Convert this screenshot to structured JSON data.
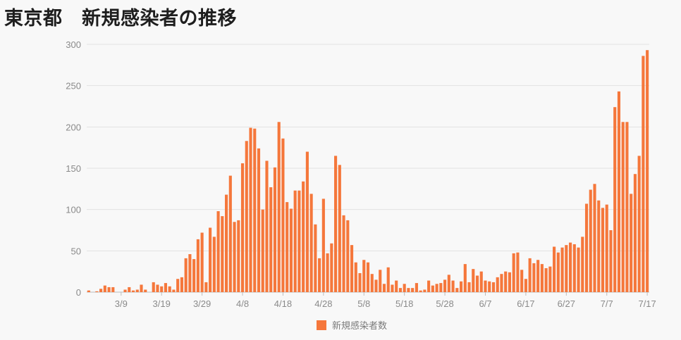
{
  "header": {
    "title": "東京都　新規感染者の推移"
  },
  "chart_data": {
    "type": "bar",
    "color": "#f5773b",
    "ylim": [
      0,
      300
    ],
    "yticks": [
      0,
      50,
      100,
      150,
      200,
      250,
      300
    ],
    "xtick_labels": [
      "3/9",
      "3/19",
      "3/29",
      "4/8",
      "4/18",
      "4/28",
      "5/8",
      "5/18",
      "5/28",
      "6/7",
      "6/17",
      "6/27",
      "7/7",
      "7/17"
    ],
    "xtick_index": [
      8,
      18,
      28,
      38,
      48,
      58,
      68,
      78,
      88,
      98,
      108,
      118,
      128,
      138
    ],
    "grid": true,
    "legend_position": "bottom",
    "series": [
      {
        "name": "新規感染者数",
        "values": [
          2,
          0,
          1,
          4,
          8,
          6,
          6,
          0,
          0,
          3,
          6,
          2,
          3,
          9,
          3,
          0,
          12,
          9,
          7,
          11,
          7,
          3,
          16,
          18,
          41,
          46,
          40,
          64,
          72,
          12,
          78,
          67,
          98,
          92,
          118,
          141,
          85,
          87,
          156,
          183,
          199,
          198,
          174,
          100,
          159,
          127,
          151,
          206,
          186,
          109,
          101,
          123,
          123,
          134,
          170,
          119,
          82,
          41,
          113,
          47,
          59,
          165,
          154,
          93,
          87,
          57,
          36,
          23,
          39,
          36,
          22,
          15,
          27,
          10,
          30,
          9,
          14,
          5,
          10,
          5,
          5,
          11,
          2,
          3,
          14,
          8,
          10,
          11,
          15,
          21,
          14,
          5,
          13,
          34,
          12,
          28,
          20,
          25,
          14,
          13,
          12,
          18,
          22,
          25,
          24,
          47,
          48,
          27,
          16,
          41,
          35,
          39,
          34,
          29,
          31,
          55,
          48,
          54,
          57,
          60,
          58,
          54,
          67,
          107,
          124,
          131,
          111,
          102,
          106,
          75,
          224,
          243,
          206,
          206,
          119,
          143,
          165,
          286,
          293
        ]
      }
    ]
  }
}
